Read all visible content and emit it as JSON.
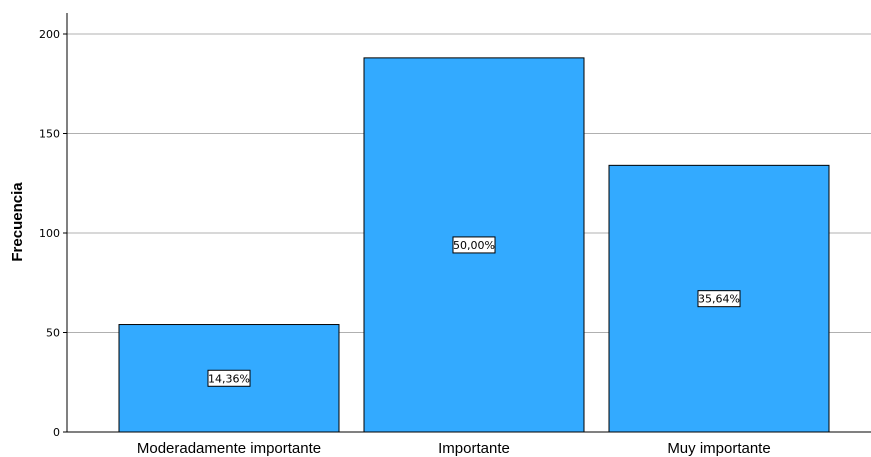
{
  "chart_data": {
    "type": "bar",
    "categories": [
      "Moderadamente importante",
      "Importante",
      "Muy importante"
    ],
    "values": [
      54,
      188,
      134
    ],
    "data_labels": [
      "14,36%",
      "50,00%",
      "35,64%"
    ],
    "title": "",
    "xlabel": "",
    "ylabel": "Frecuencia",
    "ylim": [
      0,
      210
    ],
    "yticks": [
      0,
      50,
      100,
      150,
      200
    ],
    "ytick_labels": [
      "0",
      "50",
      "100",
      "150",
      "200"
    ],
    "grid": "horizontal",
    "colors": {
      "bar_fill": "#33aaff",
      "bar_stroke": "#000000",
      "grid": "#b0b0b0",
      "axis": "#000000",
      "label_box_fill": "#ffffff",
      "label_box_stroke": "#000000"
    }
  }
}
